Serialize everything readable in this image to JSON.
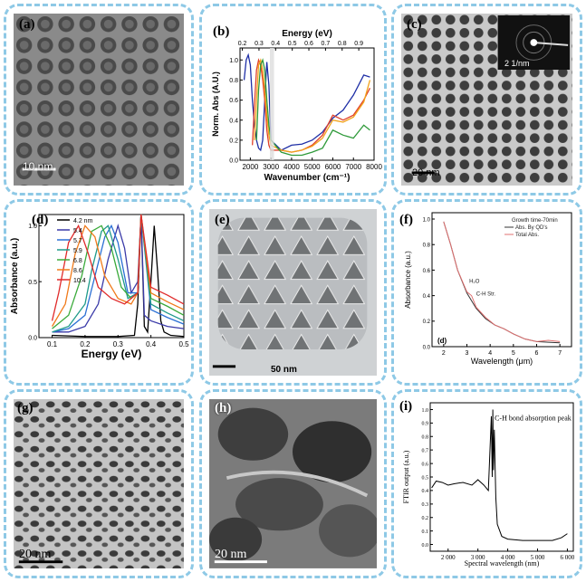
{
  "panels": {
    "a": {
      "label": "(a)",
      "scale": "10 nm"
    },
    "b": {
      "label": "(b)"
    },
    "c": {
      "label": "(c)",
      "scale": "20 nm",
      "inset_scale": "2 1/nm"
    },
    "d": {
      "label": "(d)"
    },
    "e": {
      "label": "(e)",
      "scale": "50 nm"
    },
    "f": {
      "label": "(f)"
    },
    "g": {
      "label": "(g)",
      "scale": "20 nm"
    },
    "h": {
      "label": "(h)",
      "scale": "20 nm"
    },
    "i": {
      "label": "(i)"
    }
  },
  "colors": {
    "border": "#8ec9e6"
  },
  "chart_data": [
    {
      "panel": "b",
      "type": "line",
      "title": "",
      "xlabel": "Wavenumber (cm⁻¹)",
      "ylabel": "Norm. Abs (A.U.)",
      "top_axis_label": "Energy (eV)",
      "top_ticks": [
        "0.2",
        "0.3",
        "0.4",
        "0.5",
        "0.6",
        "0.7",
        "0.8",
        "0.9"
      ],
      "top_tick_values": [
        1613,
        2420,
        3226,
        4033,
        4839,
        5646,
        6452,
        7259
      ],
      "xticks": [
        2000,
        3000,
        4000,
        5000,
        6000,
        7000,
        8000
      ],
      "yticks": [
        0.0,
        0.2,
        0.4,
        0.6,
        0.8,
        1.0
      ],
      "xlim": [
        1500,
        8000
      ],
      "ylim": [
        0,
        1.12
      ],
      "series": [
        {
          "color": "#1f2fa6",
          "x": [
            1700,
            1800,
            1900,
            2000,
            2100,
            2200,
            2300,
            2400,
            2500,
            2600,
            2700,
            2800,
            2900,
            3000,
            3500,
            4000,
            4500,
            5000,
            5500,
            6000,
            6500,
            7000,
            7500,
            7800
          ],
          "y": [
            0.8,
            1.0,
            1.05,
            0.95,
            0.6,
            0.35,
            0.2,
            0.12,
            0.1,
            0.2,
            0.6,
            0.98,
            0.75,
            0.2,
            0.1,
            0.15,
            0.16,
            0.2,
            0.28,
            0.42,
            0.5,
            0.65,
            0.85,
            0.83
          ]
        },
        {
          "color": "#e0402a",
          "x": [
            2100,
            2200,
            2300,
            2400,
            2500,
            2600,
            2700,
            2800,
            2900,
            3000,
            3500,
            4000,
            4500,
            5000,
            5500,
            6000,
            6500,
            7000,
            7500,
            7800
          ],
          "y": [
            0.15,
            0.55,
            0.9,
            1.0,
            0.95,
            0.8,
            0.6,
            0.3,
            0.15,
            0.1,
            0.1,
            0.08,
            0.1,
            0.15,
            0.25,
            0.45,
            0.4,
            0.45,
            0.6,
            0.72
          ]
        },
        {
          "color": "#f2a31b",
          "x": [
            2200,
            2300,
            2400,
            2500,
            2600,
            2700,
            2800,
            2900,
            3000,
            3500,
            4000,
            4500,
            5000,
            5500,
            6000,
            6500,
            7000,
            7500,
            7800
          ],
          "y": [
            0.2,
            0.6,
            0.95,
            1.0,
            0.9,
            0.7,
            0.45,
            0.25,
            0.15,
            0.1,
            0.08,
            0.1,
            0.14,
            0.22,
            0.4,
            0.38,
            0.43,
            0.58,
            0.8
          ]
        },
        {
          "color": "#2f9a3a",
          "x": [
            2300,
            2400,
            2500,
            2600,
            2700,
            2800,
            2900,
            3000,
            3500,
            4000,
            4500,
            5000,
            5500,
            6000,
            6500,
            7000,
            7500,
            7800
          ],
          "y": [
            0.2,
            0.7,
            0.95,
            1.0,
            0.9,
            0.6,
            0.35,
            0.2,
            0.08,
            0.05,
            0.05,
            0.08,
            0.12,
            0.3,
            0.25,
            0.22,
            0.35,
            0.3
          ]
        }
      ]
    },
    {
      "panel": "d",
      "type": "line",
      "title": "",
      "xlabel": "Energy (eV)",
      "ylabel": "Absorbance (a.u.)",
      "xticks": [
        0.1,
        0.2,
        0.3,
        0.4,
        0.5
      ],
      "yticks": [
        0.0,
        0.5,
        1.0
      ],
      "xlim": [
        0.06,
        0.5
      ],
      "ylim": [
        0,
        1.1
      ],
      "series": [
        {
          "name": "4.2 nm",
          "color": "#000000",
          "x": [
            0.1,
            0.2,
            0.3,
            0.35,
            0.36,
            0.37,
            0.38,
            0.39,
            0.4,
            0.41,
            0.42,
            0.43,
            0.44,
            0.46,
            0.5
          ],
          "y": [
            0.02,
            0.01,
            0.01,
            0.02,
            0.3,
            1.1,
            0.1,
            0.05,
            0.5,
            1.0,
            0.6,
            0.15,
            0.05,
            0.02,
            0.01
          ]
        },
        {
          "name": "5.4",
          "color": "#3a3aa8",
          "x": [
            0.1,
            0.15,
            0.2,
            0.24,
            0.27,
            0.3,
            0.32,
            0.34,
            0.36,
            0.37,
            0.38,
            0.4,
            0.45,
            0.5
          ],
          "y": [
            0.05,
            0.05,
            0.1,
            0.3,
            0.7,
            1.0,
            0.8,
            0.4,
            0.5,
            1.1,
            0.2,
            0.15,
            0.1,
            0.08
          ]
        },
        {
          "name": "5.7",
          "color": "#2a6fd4",
          "x": [
            0.1,
            0.15,
            0.2,
            0.23,
            0.26,
            0.28,
            0.3,
            0.33,
            0.36,
            0.37,
            0.4,
            0.45,
            0.5
          ],
          "y": [
            0.05,
            0.08,
            0.2,
            0.55,
            0.9,
            1.0,
            0.85,
            0.4,
            0.4,
            1.1,
            0.25,
            0.18,
            0.12
          ]
        },
        {
          "name": "5.9",
          "color": "#1f9a8a",
          "x": [
            0.1,
            0.15,
            0.2,
            0.22,
            0.25,
            0.27,
            0.3,
            0.33,
            0.36,
            0.37,
            0.4,
            0.45,
            0.5
          ],
          "y": [
            0.05,
            0.1,
            0.3,
            0.6,
            0.95,
            1.0,
            0.7,
            0.35,
            0.4,
            1.1,
            0.3,
            0.22,
            0.15
          ]
        },
        {
          "name": "6.8",
          "color": "#3aaa3a",
          "x": [
            0.1,
            0.15,
            0.19,
            0.22,
            0.25,
            0.28,
            0.31,
            0.34,
            0.36,
            0.37,
            0.4,
            0.45,
            0.5
          ],
          "y": [
            0.08,
            0.2,
            0.55,
            0.95,
            1.0,
            0.8,
            0.45,
            0.35,
            0.4,
            1.1,
            0.35,
            0.28,
            0.2
          ]
        },
        {
          "name": "8.6",
          "color": "#f07a1a",
          "x": [
            0.1,
            0.14,
            0.17,
            0.2,
            0.23,
            0.26,
            0.3,
            0.34,
            0.36,
            0.37,
            0.4,
            0.45,
            0.5
          ],
          "y": [
            0.1,
            0.3,
            0.75,
            1.0,
            0.9,
            0.55,
            0.35,
            0.3,
            0.4,
            1.1,
            0.4,
            0.32,
            0.25
          ]
        },
        {
          "name": "10.4",
          "color": "#e02a2a",
          "x": [
            0.1,
            0.12,
            0.15,
            0.18,
            0.21,
            0.24,
            0.28,
            0.32,
            0.36,
            0.37,
            0.4,
            0.45,
            0.5
          ],
          "y": [
            0.15,
            0.4,
            0.85,
            1.0,
            0.75,
            0.45,
            0.35,
            0.3,
            0.4,
            1.1,
            0.45,
            0.38,
            0.3
          ]
        }
      ]
    },
    {
      "panel": "f",
      "type": "line",
      "title": "",
      "xlabel": "Wavelength (μm)",
      "ylabel": "Absorbance (a.u.)",
      "inner_label": "(d)",
      "legend_header": "Growth time-70min",
      "xticks": [
        2,
        3,
        4,
        5,
        6,
        7
      ],
      "yticks": [
        0.0,
        0.2,
        0.4,
        0.6,
        0.8,
        1.0
      ],
      "xlim": [
        1.5,
        7.5
      ],
      "ylim": [
        0,
        1.05
      ],
      "annotations": [
        "H₂O",
        "C-H Str."
      ],
      "series": [
        {
          "name": "Abs. By QD's",
          "color": "#333333",
          "x": [
            2.0,
            2.3,
            2.6,
            3.0,
            3.4,
            3.8,
            4.2,
            4.6,
            5.0,
            5.5,
            6.0,
            6.5,
            7.0
          ],
          "y": [
            0.98,
            0.8,
            0.6,
            0.42,
            0.3,
            0.22,
            0.17,
            0.14,
            0.1,
            0.06,
            0.04,
            0.035,
            0.03
          ]
        },
        {
          "name": "Total Abs.",
          "color": "#e07070",
          "x": [
            2.0,
            2.3,
            2.6,
            3.0,
            3.2,
            3.4,
            3.8,
            4.2,
            4.6,
            5.0,
            5.5,
            6.0,
            6.5,
            7.0
          ],
          "y": [
            0.98,
            0.8,
            0.6,
            0.43,
            0.4,
            0.31,
            0.23,
            0.17,
            0.14,
            0.1,
            0.06,
            0.04,
            0.05,
            0.04
          ]
        }
      ]
    },
    {
      "panel": "i",
      "type": "line",
      "title": "",
      "xlabel": "Spectral wavelength (nm)",
      "ylabel": "FTIR output (a.u.)",
      "annotation": "C-H bond absorption peak",
      "xticks": [
        2000,
        3000,
        4000,
        5000,
        6000
      ],
      "xtick_labels": [
        "2 000",
        "3 000",
        "4 000",
        "5 000",
        "6 000"
      ],
      "yticks": [
        0.0,
        0.1,
        0.2,
        0.3,
        0.4,
        0.5,
        0.6,
        0.7,
        0.8,
        0.9,
        1.0
      ],
      "xlim": [
        1400,
        6200
      ],
      "ylim": [
        -0.05,
        1.05
      ],
      "series": [
        {
          "color": "#000000",
          "x": [
            1450,
            1600,
            1800,
            2000,
            2200,
            2500,
            2800,
            3000,
            3200,
            3350,
            3450,
            3480,
            3500,
            3520,
            3550,
            3600,
            3650,
            3800,
            4000,
            4500,
            5000,
            5500,
            5800,
            6000
          ],
          "y": [
            0.42,
            0.47,
            0.46,
            0.44,
            0.45,
            0.46,
            0.44,
            0.48,
            0.44,
            0.4,
            0.95,
            0.5,
            1.0,
            0.55,
            0.85,
            0.35,
            0.15,
            0.06,
            0.04,
            0.03,
            0.03,
            0.03,
            0.05,
            0.08
          ]
        }
      ]
    }
  ]
}
